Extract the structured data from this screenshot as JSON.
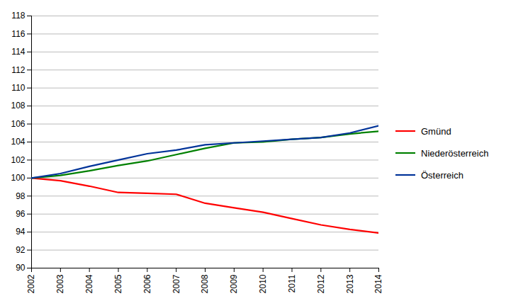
{
  "chart_data": {
    "type": "line",
    "x": [
      2002,
      2003,
      2004,
      2005,
      2006,
      2007,
      2008,
      2009,
      2010,
      2011,
      2012,
      2013,
      2014
    ],
    "series": [
      {
        "name": "Gmünd",
        "color": "#FF0000",
        "values": [
          100.0,
          99.7,
          99.1,
          98.4,
          98.3,
          98.2,
          97.2,
          96.7,
          96.2,
          95.5,
          94.8,
          94.3,
          93.9
        ]
      },
      {
        "name": "Niederösterreich",
        "color": "#008000",
        "values": [
          100.0,
          100.3,
          100.8,
          101.4,
          101.9,
          102.6,
          103.3,
          103.9,
          104.0,
          104.3,
          104.5,
          104.9,
          105.2
        ]
      },
      {
        "name": "Österreich",
        "color": "#003399",
        "values": [
          100.0,
          100.5,
          101.3,
          102.0,
          102.7,
          103.1,
          103.7,
          103.9,
          104.1,
          104.3,
          104.5,
          105.0,
          105.8
        ]
      }
    ],
    "xlim": [
      2002,
      2014
    ],
    "xticks": [
      2002,
      2003,
      2004,
      2005,
      2006,
      2007,
      2008,
      2009,
      2010,
      2011,
      2012,
      2013,
      2014
    ],
    "ylim": [
      90,
      118
    ],
    "yticks": [
      90,
      92,
      94,
      96,
      98,
      100,
      102,
      104,
      106,
      108,
      110,
      112,
      114,
      116,
      118
    ],
    "grid": "y",
    "legend": "right"
  }
}
